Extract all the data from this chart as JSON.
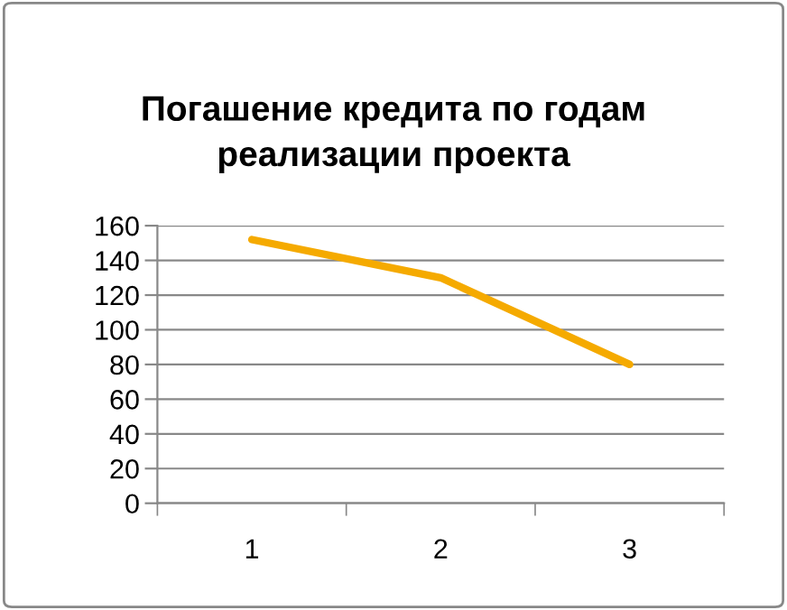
{
  "chart_data": {
    "type": "line",
    "title": "Погашение кредита по годам\nреализации проекта",
    "categories": [
      "1",
      "2",
      "3"
    ],
    "series": [
      {
        "color": "#f5aa00",
        "values": [
          152,
          130,
          80
        ]
      }
    ],
    "ylim": [
      0,
      160
    ],
    "yticks": [
      0,
      20,
      40,
      60,
      80,
      100,
      120,
      140,
      160
    ],
    "grid": "y"
  }
}
